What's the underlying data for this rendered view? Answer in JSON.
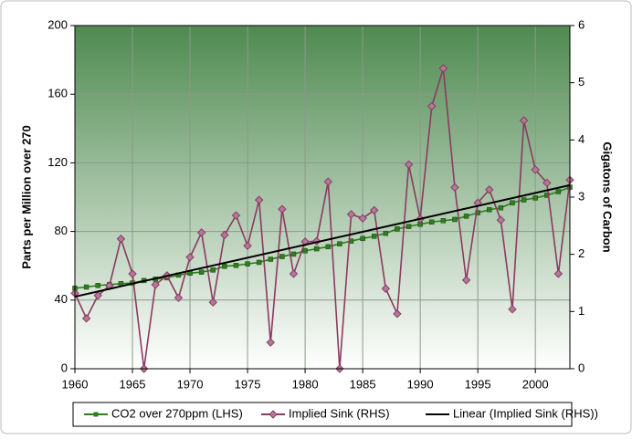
{
  "chart_data": {
    "type": "line",
    "y_label": "Parts per Million over 270",
    "y2_label": "Gigatons of Carbon",
    "x": [
      1960,
      1961,
      1962,
      1963,
      1964,
      1965,
      1966,
      1967,
      1968,
      1969,
      1970,
      1971,
      1972,
      1973,
      1974,
      1975,
      1976,
      1977,
      1978,
      1979,
      1980,
      1981,
      1982,
      1983,
      1984,
      1985,
      1986,
      1987,
      1988,
      1989,
      1990,
      1991,
      1992,
      1993,
      1994,
      1995,
      1996,
      1997,
      1998,
      1999,
      2000,
      2001,
      2002,
      2003
    ],
    "xlim": [
      1960,
      2003
    ],
    "xticks": [
      1960,
      1965,
      1970,
      1975,
      1980,
      1985,
      1990,
      1995,
      2000
    ],
    "ylim": [
      0,
      200
    ],
    "yticks": [
      0,
      40,
      80,
      120,
      160,
      200
    ],
    "y2lim": [
      0,
      6
    ],
    "y2ticks": [
      0,
      1,
      2,
      3,
      4,
      5,
      6
    ],
    "grid": true,
    "legend": "bottom",
    "series": [
      {
        "name": "CO2 over 270ppm (LHS)",
        "color": "#2e7d1e",
        "marker": "square",
        "values": [
          46.9,
          47.6,
          48.5,
          49,
          49.6,
          50,
          51.4,
          52.2,
          53,
          54.6,
          55.7,
          56.3,
          57.5,
          59.7,
          60.2,
          61.1,
          62,
          63.8,
          65.4,
          66.8,
          68.7,
          69.9,
          71.1,
          72.8,
          74.4,
          75.9,
          77.2,
          78.9,
          81.5,
          82.9,
          84.2,
          85.5,
          86.3,
          87,
          88.9,
          90.9,
          92.7,
          93.8,
          96.7,
          98.4,
          99.5,
          101.1,
          103.2,
          105.8
        ]
      },
      {
        "name": "Implied Sink (RHS)",
        "color": "#8b3a62",
        "marker": "diamond",
        "axis": "y2",
        "values": [
          1.32,
          0.88,
          1.28,
          1.45,
          2.27,
          1.66,
          0,
          1.47,
          1.63,
          1.24,
          1.95,
          2.38,
          1.16,
          2.34,
          2.68,
          2.15,
          2.95,
          0.46,
          2.79,
          1.66,
          2.22,
          2.23,
          3.27,
          0,
          2.7,
          2.63,
          2.77,
          1.4,
          0.96,
          3.57,
          2.62,
          4.59,
          5.25,
          3.17,
          1.55,
          2.9,
          3.13,
          2.6,
          1.04,
          4.34,
          3.48,
          3.25,
          1.66,
          3.3
        ]
      },
      {
        "name": "Linear (Implied Sink (RHS))",
        "color": "#000000",
        "marker": "none",
        "axis": "y2",
        "x": [
          1960,
          2003
        ],
        "values": [
          1.26,
          3.21
        ]
      }
    ]
  }
}
